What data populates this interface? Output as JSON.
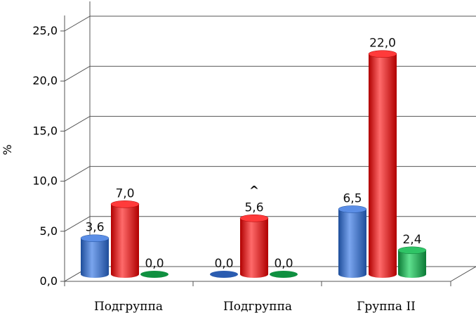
{
  "chart_data": {
    "type": "bar",
    "style": "3d-cylinder",
    "categories": [
      "Подгруппа",
      "Подгруппа",
      "Группа II"
    ],
    "series": [
      {
        "values": [
          3.6,
          0.0,
          6.5
        ],
        "color": "#3a6fcc"
      },
      {
        "values": [
          7.0,
          5.6,
          22.0
        ],
        "color": "#ee0000"
      },
      {
        "values": [
          0.0,
          0.0,
          2.4
        ],
        "color": "#13a84a"
      }
    ],
    "data_labels": [
      [
        "3,6",
        "0,0",
        "6,5"
      ],
      [
        "7,0",
        "5,6",
        "22,0"
      ],
      [
        "0,0",
        "0,0",
        "2,4"
      ]
    ],
    "annotation": "^",
    "ylabel": "%",
    "ylim": [
      0,
      25
    ],
    "yticks": [
      "0,0",
      "5,0",
      "10,0",
      "15,0",
      "20,0",
      "25,0"
    ],
    "grid": true,
    "legend": "none"
  }
}
